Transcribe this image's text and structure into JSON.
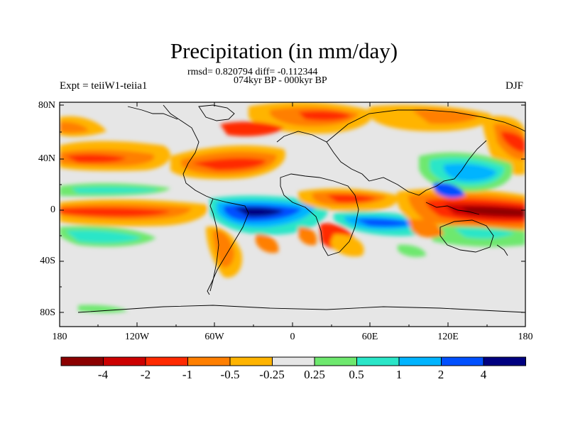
{
  "header": {
    "title": "Precipitation (in mm/day)",
    "stats": "rmsd= 0.820794 diff= -0.112344",
    "period": "074kyr BP - 000kyr BP",
    "experiment": "Expt = teiiW1-teiia1",
    "season": "DJF"
  },
  "axes": {
    "lat_ticks": [
      "80N",
      "40N",
      "0",
      "40S",
      "80S"
    ],
    "lon_ticks": [
      "180",
      "120W",
      "60W",
      "0",
      "60E",
      "120E",
      "180"
    ]
  },
  "colorbar": {
    "labels": [
      "-4",
      "-2",
      "-1",
      "-0.5",
      "-0.25",
      "0.25",
      "0.5",
      "1",
      "2",
      "4"
    ],
    "colors": [
      "#8b0000",
      "#cc0000",
      "#ff2a00",
      "#ff7f00",
      "#ffb400",
      "#e6e6e6",
      "#6ee86e",
      "#2ae6c8",
      "#00b4ff",
      "#0050ff",
      "#000080"
    ]
  }
}
